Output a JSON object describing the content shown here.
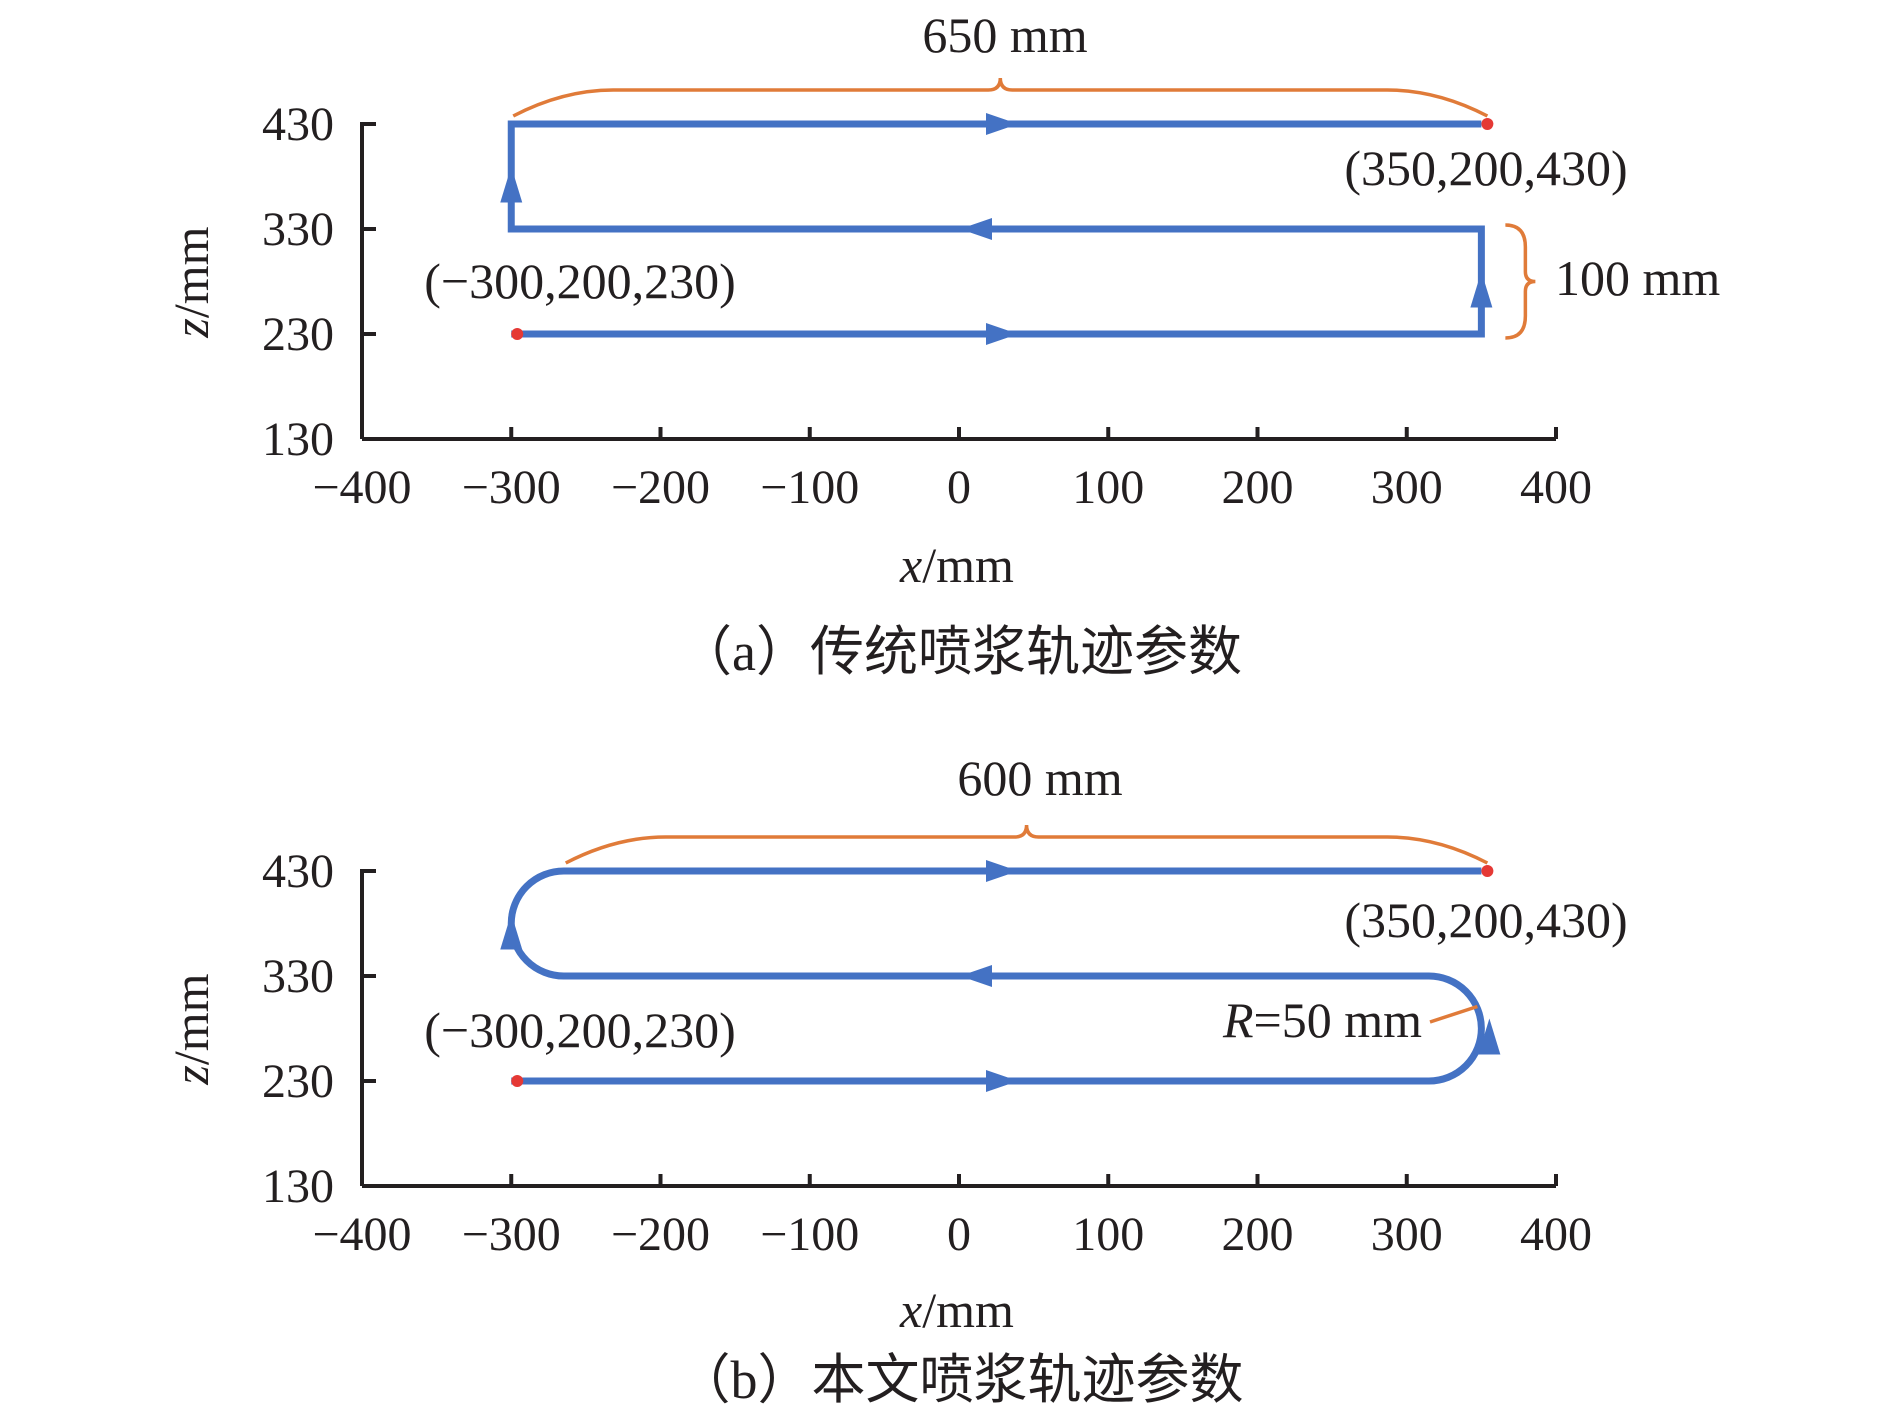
{
  "chart_data": [
    {
      "type": "line",
      "caption": "（a）传统喷浆轨迹参数",
      "xlabel_var": "x",
      "xlabel_unit": "/mm",
      "ylabel_var": "z",
      "ylabel_unit": "/mm",
      "xlim": [
        -400,
        400
      ],
      "ylim": [
        130,
        430
      ],
      "x_ticks": [
        -400,
        -300,
        -200,
        -100,
        0,
        100,
        200,
        300,
        400
      ],
      "x_tick_labels": [
        "−400",
        "−300",
        "−200",
        "−100",
        "0",
        "100",
        "200",
        "300",
        "400"
      ],
      "y_ticks": [
        130,
        230,
        330,
        430
      ],
      "y_tick_labels": [
        "130",
        "230",
        "330",
        "430"
      ],
      "path": [
        [
          -300,
          230
        ],
        [
          350,
          230
        ],
        [
          350,
          330
        ],
        [
          -300,
          330
        ],
        [
          -300,
          430
        ],
        [
          350,
          430
        ]
      ],
      "corner_radius": 0,
      "start_point": {
        "x": -300,
        "z": 230,
        "label": "(−300,200,230)"
      },
      "end_point": {
        "x": 350,
        "z": 430,
        "label": "(350,200,430)"
      },
      "width_annotation": "650 mm",
      "spacing_annotation": "100 mm",
      "colors": {
        "path": "#4472c4",
        "annotation": "#e07b39",
        "point": "#e53935"
      }
    },
    {
      "type": "line",
      "caption": "（b）本文喷浆轨迹参数",
      "xlabel_var": "x",
      "xlabel_unit": "/mm",
      "ylabel_var": "z",
      "ylabel_unit": "/mm",
      "xlim": [
        -400,
        400
      ],
      "ylim": [
        130,
        430
      ],
      "x_ticks": [
        -400,
        -300,
        -200,
        -100,
        0,
        100,
        200,
        300,
        400
      ],
      "x_tick_labels": [
        "−400",
        "−300",
        "−200",
        "−100",
        "0",
        "100",
        "200",
        "300",
        "400"
      ],
      "y_ticks": [
        130,
        230,
        330,
        430
      ],
      "y_tick_labels": [
        "130",
        "230",
        "330",
        "430"
      ],
      "path": [
        [
          -300,
          230
        ],
        [
          350,
          230
        ],
        [
          350,
          330
        ],
        [
          -300,
          330
        ],
        [
          -300,
          430
        ],
        [
          350,
          430
        ]
      ],
      "corner_radius": 50,
      "start_point": {
        "x": -300,
        "z": 230,
        "label": "(−300,200,230)"
      },
      "end_point": {
        "x": 350,
        "z": 430,
        "label": "(350,200,430)"
      },
      "width_annotation": "600 mm",
      "radius_annotation_var": "R",
      "radius_annotation_text": "=50 mm",
      "colors": {
        "path": "#4472c4",
        "annotation": "#e07b39",
        "point": "#e53935"
      }
    }
  ]
}
